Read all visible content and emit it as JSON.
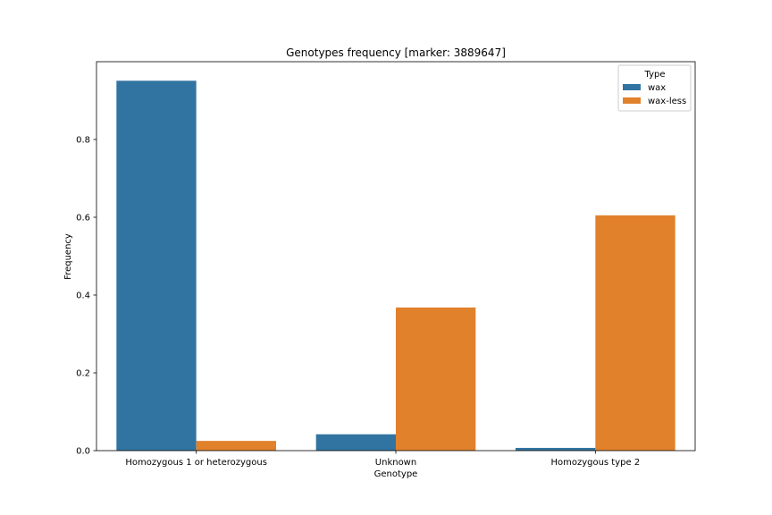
{
  "chart_data": {
    "type": "bar",
    "title": "Genotypes frequency [marker: 3889647]",
    "xlabel": "Genotype",
    "ylabel": "Frequency",
    "categories": [
      "Homozygous 1 or heterozygous",
      "Unknown",
      "Homozygous type 2"
    ],
    "series": [
      {
        "name": "wax",
        "color": "#3274a1",
        "values": [
          0.951,
          0.042,
          0.007
        ]
      },
      {
        "name": "wax-less",
        "color": "#e1812c",
        "values": [
          0.025,
          0.368,
          0.605
        ]
      }
    ],
    "ylim": [
      0,
      1.0
    ],
    "yticks": [
      0.0,
      0.2,
      0.4,
      0.6,
      0.8
    ],
    "ytick_labels": [
      "0.0",
      "0.2",
      "0.4",
      "0.6",
      "0.8"
    ],
    "legend": {
      "title": "Type",
      "placement": "top-right"
    },
    "grid": false
  }
}
